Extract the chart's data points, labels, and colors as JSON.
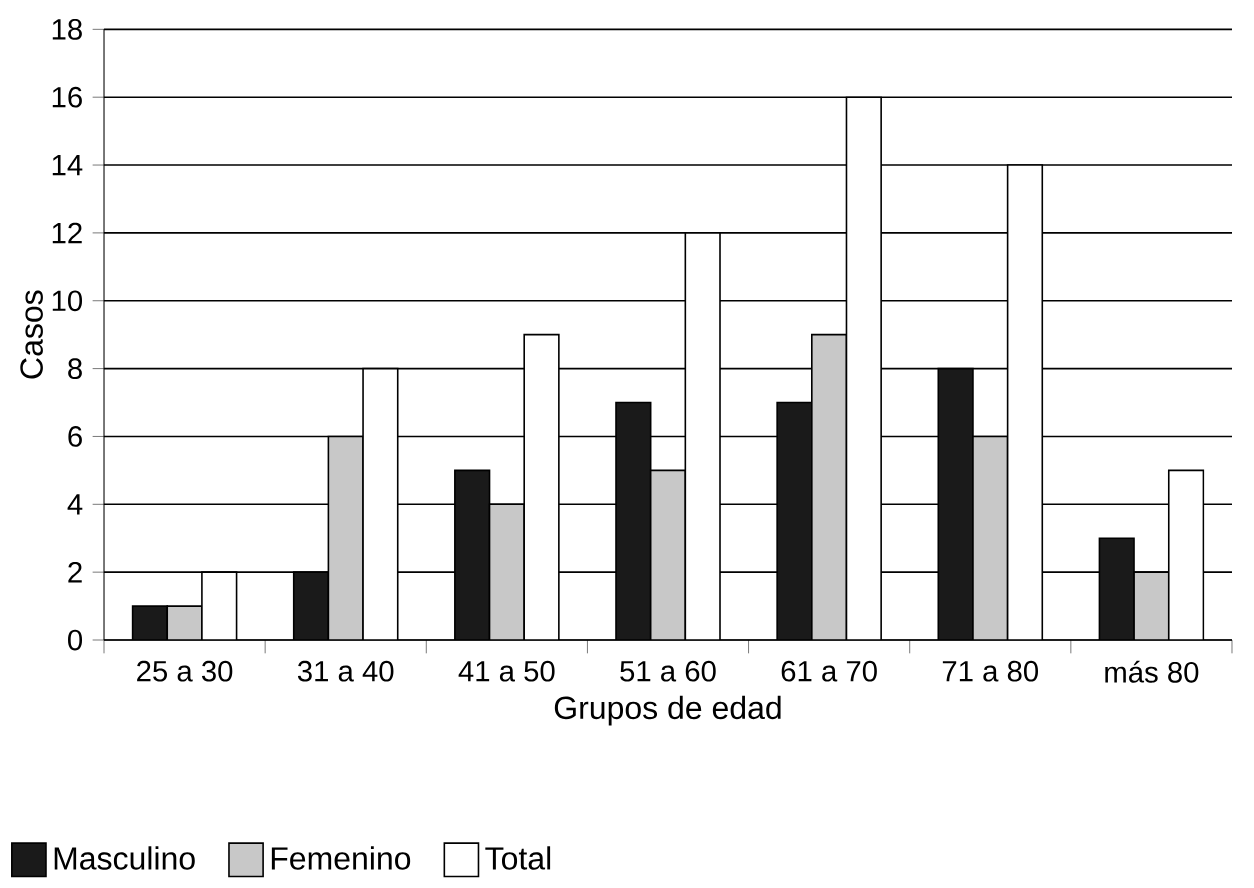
{
  "chart_data": {
    "type": "bar",
    "xlabel": "Grupos de edad",
    "ylabel": "Casos",
    "categories": [
      "25 a 30",
      "31 a 40",
      "41 a 50",
      "51 a 60",
      "61 a 70",
      "71 a 80",
      "más 80"
    ],
    "series": [
      {
        "name": "Masculino",
        "color": "#1a1a1a",
        "values": [
          1,
          2,
          5,
          7,
          7,
          8,
          3
        ]
      },
      {
        "name": "Femenino",
        "color": "#c8c8c8",
        "values": [
          1,
          6,
          4,
          5,
          9,
          6,
          2
        ]
      },
      {
        "name": "Total",
        "color": "#ffffff",
        "values": [
          2,
          8,
          9,
          12,
          16,
          14,
          5
        ]
      }
    ],
    "ylim": [
      0,
      18
    ],
    "yticks": [
      0,
      2,
      4,
      6,
      8,
      10,
      12,
      14,
      16,
      18
    ],
    "grid": "y",
    "legend": "bottom"
  }
}
